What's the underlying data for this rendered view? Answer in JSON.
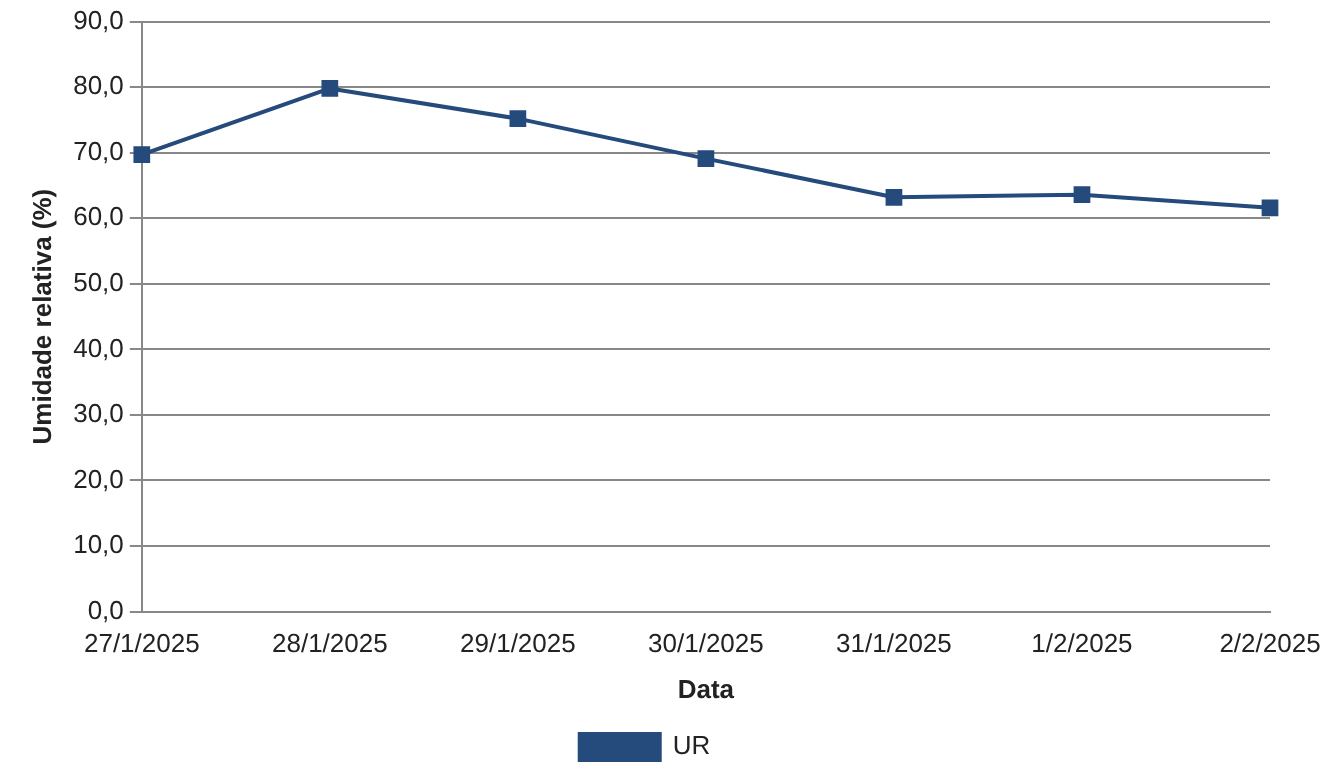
{
  "chart_data": {
    "type": "line",
    "xlabel": "Data",
    "ylabel": "Umidade relativa (%)",
    "categories": [
      "27/1/2025",
      "28/1/2025",
      "29/1/2025",
      "30/1/2025",
      "31/1/2025",
      "1/2/2025",
      "2/2/2025"
    ],
    "series": [
      {
        "name": "UR",
        "color": "#254a7c",
        "values": [
          69.7,
          79.8,
          75.2,
          69.1,
          63.2,
          63.6,
          61.6
        ]
      }
    ],
    "ylim": [
      0,
      90
    ],
    "yticks": [
      {
        "value": 0,
        "label": "0,0"
      },
      {
        "value": 10,
        "label": "10,0"
      },
      {
        "value": 20,
        "label": "20,0"
      },
      {
        "value": 30,
        "label": "30,0"
      },
      {
        "value": 40,
        "label": "40,0"
      },
      {
        "value": 50,
        "label": "50,0"
      },
      {
        "value": 60,
        "label": "60,0"
      },
      {
        "value": 70,
        "label": "70,0"
      },
      {
        "value": 80,
        "label": "80,0"
      },
      {
        "value": 90,
        "label": "90,0"
      }
    ],
    "grid": "y",
    "legend": "bottom",
    "marker": "square",
    "line_style": "solid"
  }
}
